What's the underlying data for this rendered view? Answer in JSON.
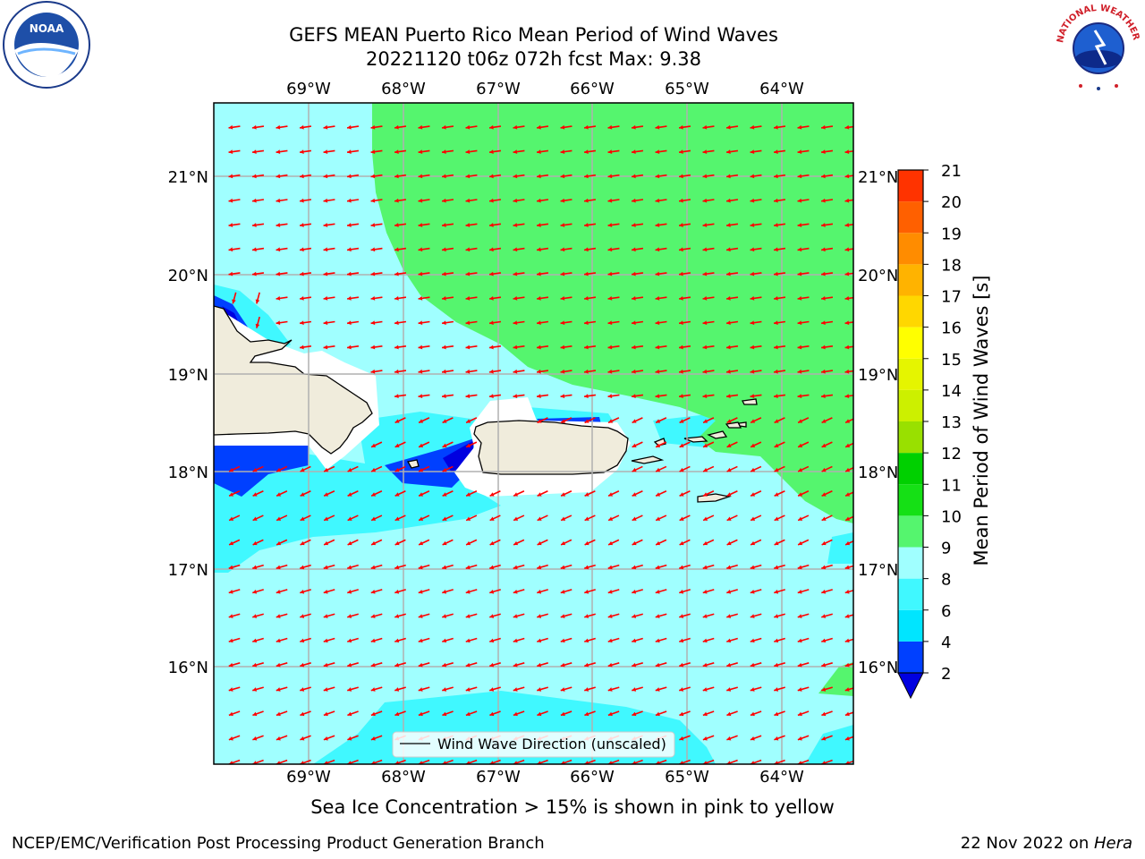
{
  "title_line1": "GEFS MEAN Puerto Rico Mean Period of Wind Waves",
  "title_line2": "20221120 t06z 072h fcst   Max: 9.38",
  "lon_labels": [
    "69°W",
    "68°W",
    "67°W",
    "66°W",
    "65°W",
    "64°W"
  ],
  "lat_labels": [
    "21°N",
    "20°N",
    "19°N",
    "18°N",
    "17°N",
    "16°N"
  ],
  "legend_label": "Wind Wave Direction (unscaled)",
  "colorbar": {
    "label": "Mean Period of Wind Waves [s]",
    "ticks": [
      "2",
      "4",
      "6",
      "8",
      "9",
      "10",
      "11",
      "12",
      "13",
      "14",
      "15",
      "16",
      "17",
      "18",
      "19",
      "20",
      "21"
    ],
    "colors": [
      "#0040ff",
      "#00e5ff",
      "#40f8ff",
      "#a0ffff",
      "#55f56e",
      "#15e015",
      "#00d000",
      "#99e000",
      "#ccf000",
      "#e5f500",
      "#ffff00",
      "#ffd700",
      "#ffb300",
      "#ff8c00",
      "#ff6000",
      "#ff3300",
      "#ff0000"
    ],
    "under_color": "#0000e0"
  },
  "colors": {
    "sea_lightcyan": "#a0ffff",
    "sea_cyan": "#40f8ff",
    "green": "#55f56e",
    "land": "#f0ecdc",
    "arrow": "#ff0000"
  },
  "logos": {
    "noaa": "NOAA",
    "nws": "NATIONAL WEATHER SERVICE"
  },
  "note": "Sea Ice Concentration > 15% is shown in pink to yellow",
  "footer_left": "NCEP/EMC/Verification Post Processing Product Generation Branch",
  "footer_date": "22 Nov 2022 on ",
  "footer_host": "Hera"
}
